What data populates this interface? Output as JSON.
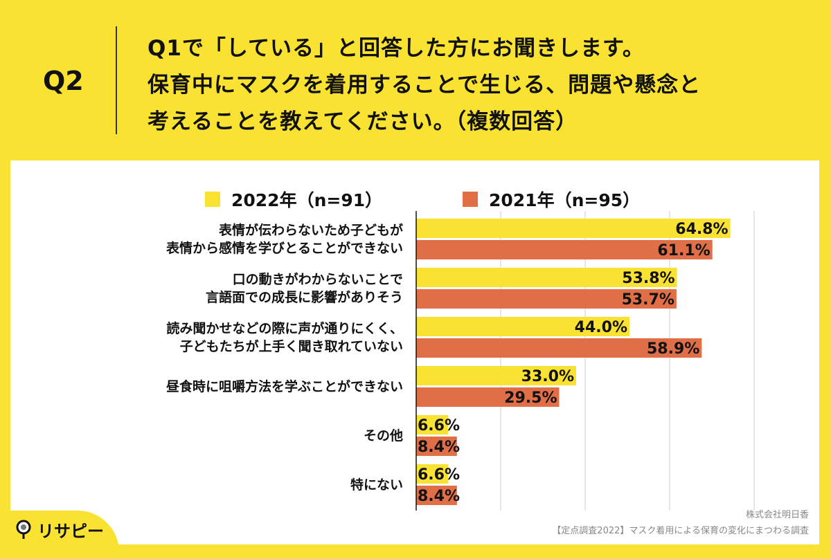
{
  "header": {
    "question_no": "Q2",
    "title_lines": [
      "Q1で「している」と回答した方にお聞きします。",
      "保育中にマスクを着用することで生じる、問題や懸念と",
      "考えることを教えてください。（複数回答）"
    ]
  },
  "chart_data": {
    "type": "bar",
    "orientation": "horizontal",
    "grid": true,
    "legend_position": "top",
    "categories": [
      [
        "表情が伝わらないため子どもが",
        "表情から感情を学びとることができない"
      ],
      [
        "口の動きがわからないことで",
        "言語面での成長に影響がありそう"
      ],
      [
        "読み聞かせなどの際に声が通りにくく、",
        "子どもたちが上手く聞き取れていない"
      ],
      [
        "昼食時に咀嚼方法を学ぶことができない"
      ],
      [
        "その他"
      ],
      [
        "特にない"
      ]
    ],
    "series": [
      {
        "name": "2022年（n=91）",
        "color": "#f9e231",
        "values": [
          64.8,
          53.8,
          44.0,
          33.0,
          6.6,
          6.6
        ],
        "labels": [
          "64.8%",
          "53.8%",
          "44.0%",
          "33.0%",
          "6.6%",
          "6.6%"
        ]
      },
      {
        "name": "2021年（n=95）",
        "color": "#e06f47",
        "values": [
          61.1,
          53.7,
          58.9,
          29.5,
          8.4,
          8.4
        ],
        "labels": [
          "61.1%",
          "53.7%",
          "58.9%",
          "29.5%",
          "8.4%",
          "8.4%"
        ]
      }
    ]
  },
  "footer": {
    "company": "株式会社明日香",
    "survey": "【定点調査2022】マスク着用による保育の変化にまつわる調査",
    "logo": "リサピー"
  }
}
